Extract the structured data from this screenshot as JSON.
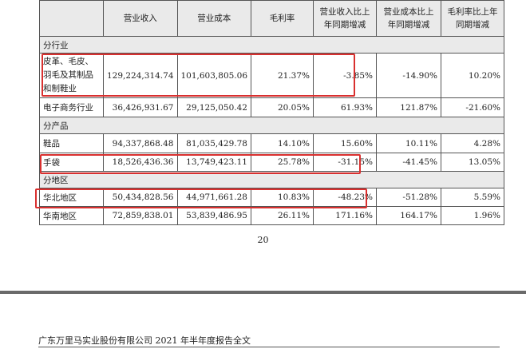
{
  "table": {
    "header": [
      "",
      "营业收入",
      "营业成本",
      "毛利率",
      "营业收入比上年同期增减",
      "营业成本比上年同期增减",
      "毛利率比上年同期增减"
    ],
    "sections": {
      "industry": "分行业",
      "product": "分产品",
      "region": "分地区"
    },
    "rows": {
      "leather": [
        "皮革、毛皮、羽毛及其制品和制鞋业",
        "129,224,314.74",
        "101,603,805.06",
        "21.37%",
        "-3.85%",
        "-14.90%",
        "10.20%"
      ],
      "ecommerce": [
        "电子商务行业",
        "36,426,931.67",
        "29,125,050.42",
        "20.05%",
        "61.93%",
        "121.87%",
        "-21.60%"
      ],
      "shoes": [
        "鞋品",
        "94,337,868.48",
        "81,035,429.78",
        "14.10%",
        "15.60%",
        "10.11%",
        "4.28%"
      ],
      "handbags": [
        "手袋",
        "18,526,436.36",
        "13,749,423.11",
        "25.78%",
        "-31.15%",
        "-41.45%",
        "13.05%"
      ],
      "north_china": [
        "华北地区",
        "50,434,828.56",
        "44,971,661.28",
        "10.83%",
        "-48.23%",
        "-51.28%",
        "5.59%"
      ],
      "south_china": [
        "华南地区",
        "72,859,838.01",
        "53,839,486.95",
        "26.11%",
        "171.16%",
        "164.17%",
        "1.96%"
      ]
    }
  },
  "page_number": "20",
  "footer": "广东万里马实业股份有限公司 2021 年半年度报告全文"
}
